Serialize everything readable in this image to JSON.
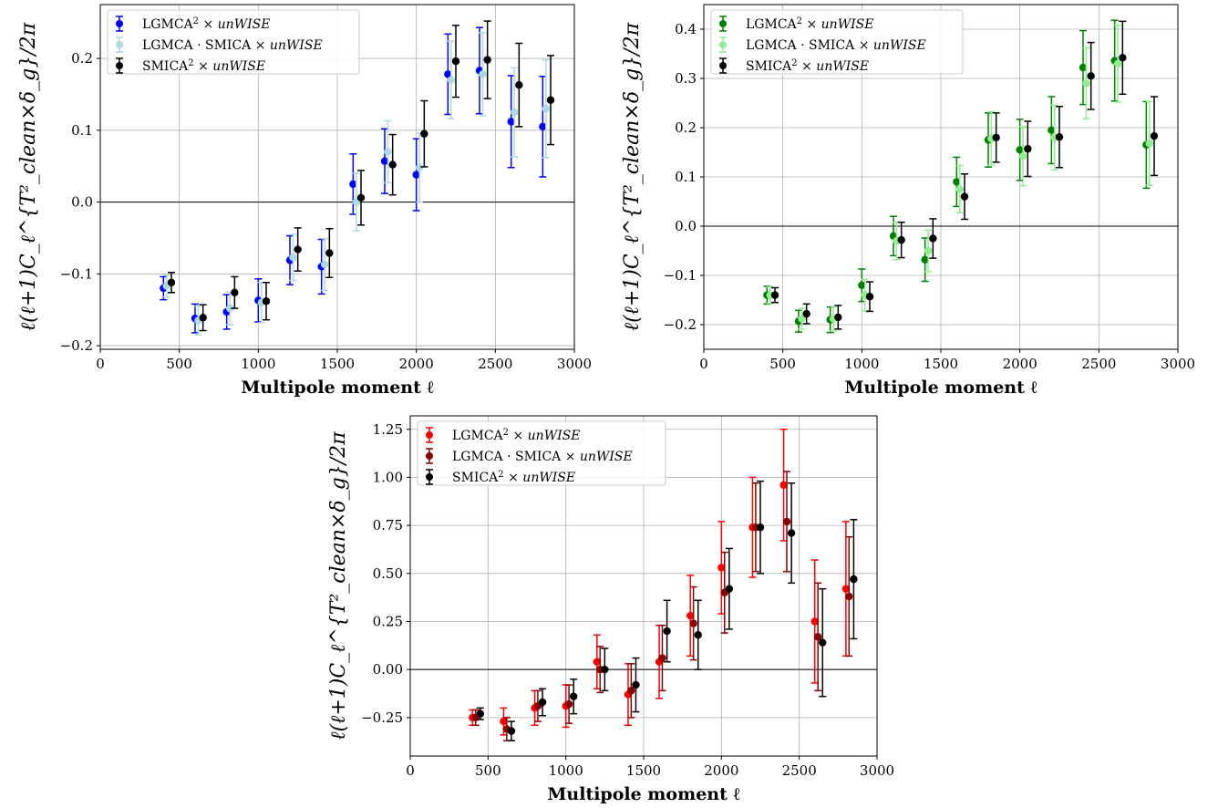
{
  "chart_data": [
    {
      "type": "scatter",
      "xlabel": "Multipole moment ℓ",
      "ylabel": "ℓ(ℓ+1)C_ℓ^{T²_clean×δ_g}/2π",
      "xlim": [
        0,
        3000
      ],
      "ylim": [
        -0.205,
        0.275
      ],
      "xticks": [
        "0",
        "500",
        "1000",
        "1500",
        "2000",
        "2500",
        "3000"
      ],
      "yticks": [
        {
          "v": -0.2,
          "t": "−0.2"
        },
        {
          "v": -0.1,
          "t": "−0.1"
        },
        {
          "v": 0.0,
          "t": "0.0"
        },
        {
          "v": 0.1,
          "t": "0.1"
        },
        {
          "v": 0.2,
          "t": "0.2"
        }
      ],
      "grid": true,
      "legend_position": "top-left",
      "series": [
        {
          "name": "LGMCA² × unWISE",
          "color": "#0000ff",
          "x": [
            400,
            600,
            800,
            1000,
            1200,
            1400,
            1600,
            1800,
            2000,
            2200,
            2400,
            2600,
            2800
          ],
          "y": [
            -0.12,
            -0.162,
            -0.153,
            -0.137,
            -0.081,
            -0.09,
            0.025,
            0.057,
            0.038,
            0.178,
            0.183,
            0.112,
            0.105
          ],
          "err": [
            0.016,
            0.02,
            0.024,
            0.03,
            0.034,
            0.038,
            0.042,
            0.045,
            0.05,
            0.056,
            0.06,
            0.064,
            0.07
          ]
        },
        {
          "name": "LGMCA · SMICA × unWISE",
          "color": "#add8e6",
          "x": [
            420,
            620,
            820,
            1020,
            1220,
            1420,
            1620,
            1820,
            2020,
            2220,
            2420,
            2620,
            2820
          ],
          "y": [
            -0.117,
            -0.165,
            -0.148,
            -0.14,
            -0.077,
            -0.087,
            0.0,
            0.07,
            0.048,
            0.17,
            0.178,
            0.125,
            0.13
          ],
          "err": [
            0.015,
            0.02,
            0.023,
            0.028,
            0.032,
            0.036,
            0.04,
            0.043,
            0.048,
            0.054,
            0.058,
            0.062,
            0.068
          ]
        },
        {
          "name": "SMICA² × unWISE",
          "color": "#000000",
          "x": [
            450,
            650,
            850,
            1050,
            1250,
            1450,
            1650,
            1850,
            2050,
            2250,
            2450,
            2650,
            2850
          ],
          "y": [
            -0.112,
            -0.161,
            -0.126,
            -0.138,
            -0.066,
            -0.071,
            0.006,
            0.052,
            0.095,
            0.196,
            0.198,
            0.163,
            0.142
          ],
          "err": [
            0.014,
            0.018,
            0.022,
            0.026,
            0.03,
            0.034,
            0.038,
            0.042,
            0.046,
            0.05,
            0.054,
            0.058,
            0.062
          ]
        }
      ]
    },
    {
      "type": "scatter",
      "xlabel": "Multipole moment ℓ",
      "ylabel": "ℓ(ℓ+1)C_ℓ^{T²_clean×δ_g}/2π",
      "xlim": [
        0,
        3000
      ],
      "ylim": [
        -0.25,
        0.45
      ],
      "xticks": [
        "0",
        "500",
        "1000",
        "1500",
        "2000",
        "2500",
        "3000"
      ],
      "yticks": [
        {
          "v": -0.2,
          "t": "−0.2"
        },
        {
          "v": -0.1,
          "t": "−0.1"
        },
        {
          "v": 0.0,
          "t": "0.0"
        },
        {
          "v": 0.1,
          "t": "0.1"
        },
        {
          "v": 0.2,
          "t": "0.2"
        },
        {
          "v": 0.3,
          "t": "0.3"
        },
        {
          "v": 0.4,
          "t": "0.4"
        }
      ],
      "grid": true,
      "legend_position": "top-left",
      "series": [
        {
          "name": "LGMCA² × unWISE",
          "color": "#008000",
          "x": [
            400,
            600,
            800,
            1000,
            1200,
            1400,
            1600,
            1800,
            2000,
            2200,
            2400,
            2600,
            2800
          ],
          "y": [
            -0.14,
            -0.193,
            -0.19,
            -0.12,
            -0.02,
            -0.068,
            0.09,
            0.175,
            0.155,
            0.195,
            0.322,
            0.336,
            0.165
          ],
          "err": [
            0.018,
            0.022,
            0.026,
            0.033,
            0.04,
            0.044,
            0.05,
            0.055,
            0.062,
            0.068,
            0.075,
            0.082,
            0.088
          ]
        },
        {
          "name": "LGMCA · SMICA × unWISE",
          "color": "#90ee90",
          "x": [
            420,
            620,
            820,
            1020,
            1220,
            1420,
            1620,
            1820,
            2020,
            2220,
            2420,
            2620,
            2820
          ],
          "y": [
            -0.14,
            -0.188,
            -0.188,
            -0.14,
            -0.03,
            -0.05,
            0.075,
            0.178,
            0.142,
            0.18,
            0.29,
            0.33,
            0.168
          ],
          "err": [
            0.017,
            0.021,
            0.025,
            0.032,
            0.038,
            0.042,
            0.048,
            0.054,
            0.06,
            0.066,
            0.072,
            0.078,
            0.085
          ]
        },
        {
          "name": "SMICA² × unWISE",
          "color": "#000000",
          "x": [
            450,
            650,
            850,
            1050,
            1250,
            1450,
            1650,
            1850,
            2050,
            2250,
            2450,
            2650,
            2850
          ],
          "y": [
            -0.14,
            -0.178,
            -0.185,
            -0.143,
            -0.028,
            -0.025,
            0.06,
            0.18,
            0.157,
            0.181,
            0.305,
            0.342,
            0.183
          ],
          "err": [
            0.015,
            0.02,
            0.024,
            0.03,
            0.036,
            0.04,
            0.046,
            0.05,
            0.056,
            0.062,
            0.068,
            0.074,
            0.08
          ]
        }
      ]
    },
    {
      "type": "scatter",
      "xlabel": "Multipole moment ℓ",
      "ylabel": "ℓ(ℓ+1)C_ℓ^{T²_clean×δ_g}/2π",
      "xlim": [
        0,
        3000
      ],
      "ylim": [
        -0.45,
        1.32
      ],
      "xticks": [
        "0",
        "500",
        "1000",
        "1500",
        "2000",
        "2500",
        "3000"
      ],
      "yticks": [
        {
          "v": -0.25,
          "t": "−0.25"
        },
        {
          "v": 0.0,
          "t": "0.00"
        },
        {
          "v": 0.25,
          "t": "0.25"
        },
        {
          "v": 0.5,
          "t": "0.50"
        },
        {
          "v": 0.75,
          "t": "0.75"
        },
        {
          "v": 1.0,
          "t": "1.00"
        },
        {
          "v": 1.25,
          "t": "1.25"
        }
      ],
      "grid": true,
      "legend_position": "top-left",
      "series": [
        {
          "name": "LGMCA² × unWISE",
          "color": "#ff0000",
          "x": [
            400,
            600,
            800,
            1000,
            1200,
            1400,
            1600,
            1800,
            2000,
            2200,
            2400,
            2600,
            2800
          ],
          "y": [
            -0.25,
            -0.27,
            -0.2,
            -0.19,
            0.04,
            -0.13,
            0.04,
            0.28,
            0.53,
            0.74,
            0.96,
            0.25,
            0.42
          ],
          "err": [
            0.04,
            0.07,
            0.09,
            0.11,
            0.14,
            0.16,
            0.19,
            0.21,
            0.24,
            0.26,
            0.29,
            0.32,
            0.35
          ]
        },
        {
          "name": "LGMCA · SMICA × unWISE",
          "color": "#8b0000",
          "x": [
            420,
            620,
            820,
            1020,
            1220,
            1420,
            1620,
            1820,
            2020,
            2220,
            2420,
            2620,
            2820
          ],
          "y": [
            -0.25,
            -0.31,
            -0.19,
            -0.18,
            0.0,
            -0.11,
            0.06,
            0.24,
            0.4,
            0.74,
            0.77,
            0.17,
            0.38
          ],
          "err": [
            0.04,
            0.06,
            0.08,
            0.1,
            0.12,
            0.14,
            0.17,
            0.19,
            0.21,
            0.23,
            0.26,
            0.28,
            0.31
          ]
        },
        {
          "name": "SMICA² × unWISE",
          "color": "#000000",
          "x": [
            450,
            650,
            850,
            1050,
            1250,
            1450,
            1650,
            1850,
            2050,
            2250,
            2450,
            2650,
            2850
          ],
          "y": [
            -0.23,
            -0.32,
            -0.17,
            -0.14,
            0.0,
            -0.08,
            0.2,
            0.18,
            0.42,
            0.74,
            0.71,
            0.14,
            0.47
          ],
          "err": [
            0.03,
            0.05,
            0.07,
            0.09,
            0.11,
            0.14,
            0.16,
            0.18,
            0.21,
            0.24,
            0.26,
            0.28,
            0.31
          ]
        }
      ]
    }
  ]
}
